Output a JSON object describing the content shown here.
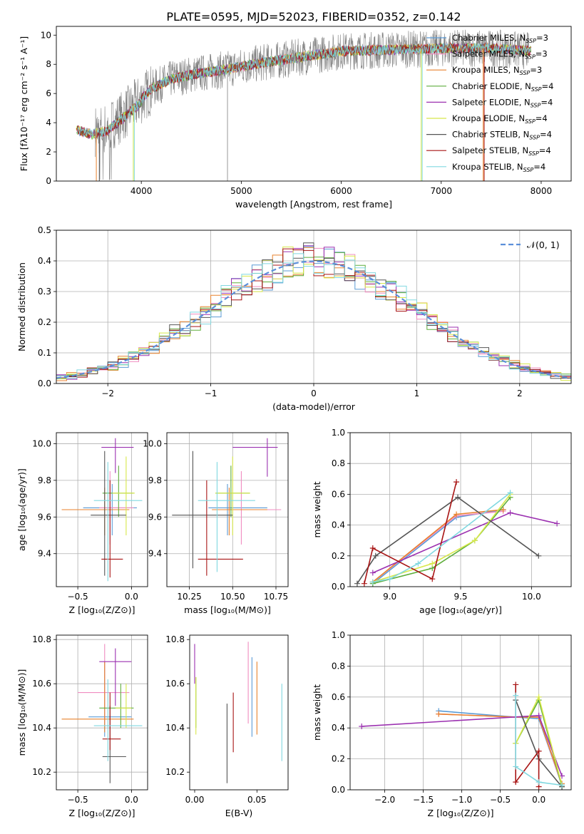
{
  "figure": {
    "title": "PLATE=0595, MJD=52023, FIBERID=0352, z=0.142"
  },
  "models": [
    {
      "name": "Chabrier MILES, N",
      "sub": "SSP",
      "tail": "=3",
      "color": "#5b9bd5"
    },
    {
      "name": "Salpeter MILES, N",
      "sub": "SSP",
      "tail": "=3",
      "color": "#f08cc0"
    },
    {
      "name": "Kroupa MILES, N",
      "sub": "SSP",
      "tail": "=3",
      "color": "#e8822d"
    },
    {
      "name": "Chabrier ELODIE, N",
      "sub": "SSP",
      "tail": "=4",
      "color": "#5fae3c"
    },
    {
      "name": "Salpeter ELODIE, N",
      "sub": "SSP",
      "tail": "=4",
      "color": "#9b30b0"
    },
    {
      "name": "Kroupa ELODIE, N",
      "sub": "SSP",
      "tail": "=4",
      "color": "#d8e84a"
    },
    {
      "name": "Chabrier STELIB, N",
      "sub": "SSP",
      "tail": "=4",
      "color": "#555555"
    },
    {
      "name": "Salpeter STELIB, N",
      "sub": "SSP",
      "tail": "=4",
      "color": "#a81414"
    },
    {
      "name": "Kroupa STELIB, N",
      "sub": "SSP",
      "tail": "=4",
      "color": "#80d8e0"
    }
  ],
  "chart_data": [
    {
      "id": "spectrum",
      "type": "line",
      "xlabel": "wavelength [Angstrom, rest frame]",
      "ylabel": "Flux [fλ10⁻¹⁷ erg cm⁻² s⁻¹ A⁻¹]",
      "xlim": [
        3150,
        8300
      ],
      "ylim": [
        0,
        10.6
      ],
      "xticks": [
        4000,
        5000,
        6000,
        7000,
        8000
      ],
      "yticks": [
        0,
        2,
        4,
        6,
        8,
        10
      ],
      "legend": "top-right",
      "continuum": {
        "x": [
          3350,
          3500,
          3650,
          3800,
          3950,
          4100,
          4300,
          4500,
          4800,
          5200,
          5600,
          6000,
          6500,
          7000,
          7500,
          7900
        ],
        "y": [
          3.7,
          3.4,
          3.6,
          4.4,
          5.3,
          6.3,
          7.0,
          7.3,
          7.6,
          8.1,
          8.5,
          8.9,
          9.0,
          9.1,
          9.1,
          8.9
        ]
      },
      "dropouts": [
        {
          "x": 3550,
          "model": 2
        },
        {
          "x": 3580,
          "model": 6
        },
        {
          "x": 3920,
          "model": 5
        },
        {
          "x": 3930,
          "model": 8
        },
        {
          "x": 6800,
          "model": 5
        },
        {
          "x": 6810,
          "model": 8
        },
        {
          "x": 7420,
          "model": 2
        },
        {
          "x": 7430,
          "model": 7
        }
      ],
      "grid": false
    },
    {
      "id": "residuals",
      "type": "histogram",
      "xlabel": "(data-model)/error",
      "ylabel": "Normed distribution",
      "xlim": [
        -2.5,
        2.5
      ],
      "ylim": [
        0,
        0.5
      ],
      "xticks": [
        -2,
        -1,
        0,
        1,
        2
      ],
      "yticks": [
        0.0,
        0.1,
        0.2,
        0.3,
        0.4,
        0.5
      ],
      "bin_width": 0.1,
      "reference": {
        "label": "𝒩(0, 1)",
        "mean": 0,
        "sigma": 1,
        "color": "#5b8fd9"
      },
      "legend": "top-right",
      "grid": true
    },
    {
      "id": "age_vs_Z",
      "type": "errorbar",
      "xlabel": "Z [log₁₀(Z/Z⊙)]",
      "ylabel": "age  [log₁₀(age/yr)]",
      "xlim": [
        -0.7,
        0.15
      ],
      "ylim": [
        9.22,
        10.06
      ],
      "xticks": [
        -0.5,
        0.0
      ],
      "yticks": [
        9.4,
        9.6,
        9.8,
        10.0
      ],
      "points": [
        {
          "model": 0,
          "x": -0.18,
          "xlo": -0.45,
          "xhi": 0.05,
          "y": 9.65,
          "ylo": 9.5,
          "yhi": 9.78
        },
        {
          "model": 1,
          "x": -0.2,
          "xlo": -0.3,
          "xhi": 0.02,
          "y": 9.65,
          "ylo": 9.45,
          "yhi": 9.85
        },
        {
          "model": 2,
          "x": -0.25,
          "xlo": -0.65,
          "xhi": -0.02,
          "y": 9.64,
          "ylo": 9.5,
          "yhi": 9.76
        },
        {
          "model": 3,
          "x": -0.12,
          "xlo": -0.27,
          "xhi": 0.02,
          "y": 9.73,
          "ylo": 9.6,
          "yhi": 9.88
        },
        {
          "model": 4,
          "x": -0.15,
          "xlo": -0.28,
          "xhi": 0.02,
          "y": 9.98,
          "ylo": 9.84,
          "yhi": 10.03
        },
        {
          "model": 5,
          "x": -0.05,
          "xlo": -0.18,
          "xhi": 0.03,
          "y": 9.73,
          "ylo": 9.5,
          "yhi": 9.93
        },
        {
          "model": 6,
          "x": -0.25,
          "xlo": -0.38,
          "xhi": -0.05,
          "y": 9.61,
          "ylo": 9.28,
          "yhi": 9.96
        },
        {
          "model": 7,
          "x": -0.2,
          "xlo": -0.28,
          "xhi": -0.08,
          "y": 9.37,
          "ylo": 9.27,
          "yhi": 9.8
        },
        {
          "model": 8,
          "x": -0.22,
          "xlo": -0.35,
          "xhi": 0.1,
          "y": 9.69,
          "ylo": 9.25,
          "yhi": 9.9
        }
      ],
      "grid": true
    },
    {
      "id": "age_vs_mass",
      "type": "errorbar",
      "xlabel": "mass [log₁₀(M/M⊙)]",
      "ylabel": "",
      "xlim": [
        10.12,
        10.82
      ],
      "ylim": [
        9.22,
        10.06
      ],
      "xticks": [
        10.25,
        10.5,
        10.75
      ],
      "yticks": [
        9.4,
        9.6,
        9.8,
        10.0
      ],
      "points": [
        {
          "model": 0,
          "x": 10.47,
          "xlo": 10.36,
          "xhi": 10.7,
          "y": 9.65,
          "ylo": 9.5,
          "yhi": 9.78
        },
        {
          "model": 1,
          "x": 10.55,
          "xlo": 10.42,
          "xhi": 10.78,
          "y": 9.64,
          "ylo": 9.45,
          "yhi": 9.85
        },
        {
          "model": 2,
          "x": 10.48,
          "xlo": 10.38,
          "xhi": 10.7,
          "y": 9.64,
          "ylo": 9.5,
          "yhi": 9.76
        },
        {
          "model": 3,
          "x": 10.49,
          "xlo": 10.4,
          "xhi": 10.6,
          "y": 9.73,
          "ylo": 9.6,
          "yhi": 9.88
        },
        {
          "model": 4,
          "x": 10.7,
          "xlo": 10.5,
          "xhi": 10.76,
          "y": 9.98,
          "ylo": 9.82,
          "yhi": 10.03
        },
        {
          "model": 5,
          "x": 10.5,
          "xlo": 10.4,
          "xhi": 10.6,
          "y": 9.73,
          "ylo": 9.5,
          "yhi": 9.93
        },
        {
          "model": 6,
          "x": 10.27,
          "xlo": 10.15,
          "xhi": 10.5,
          "y": 9.61,
          "ylo": 9.32,
          "yhi": 9.96
        },
        {
          "model": 7,
          "x": 10.35,
          "xlo": 10.3,
          "xhi": 10.56,
          "y": 9.37,
          "ylo": 9.28,
          "yhi": 9.8
        },
        {
          "model": 8,
          "x": 10.41,
          "xlo": 10.3,
          "xhi": 10.63,
          "y": 9.69,
          "ylo": 9.3,
          "yhi": 9.9
        }
      ],
      "grid": true
    },
    {
      "id": "mass_weight_vs_age",
      "type": "line",
      "xlabel": "age  [log₁₀(age/yr)]",
      "ylabel": "mass weight",
      "xlim": [
        8.72,
        10.28
      ],
      "ylim": [
        0,
        1.0
      ],
      "xticks": [
        9.0,
        9.5,
        10.0
      ],
      "yticks": [
        0.0,
        0.2,
        0.4,
        0.6,
        0.8,
        1.0
      ],
      "series": [
        {
          "model": 0,
          "x": [
            8.88,
            9.47,
            9.8
          ],
          "y": [
            0.02,
            0.45,
            0.5
          ]
        },
        {
          "model": 1,
          "x": [
            8.88,
            9.47,
            9.8
          ],
          "y": [
            0.03,
            0.46,
            0.49
          ]
        },
        {
          "model": 2,
          "x": [
            8.88,
            9.47,
            9.8
          ],
          "y": [
            0.03,
            0.47,
            0.5
          ]
        },
        {
          "model": 3,
          "x": [
            8.88,
            9.3,
            9.6,
            9.85
          ],
          "y": [
            0.02,
            0.12,
            0.3,
            0.58
          ]
        },
        {
          "model": 4,
          "x": [
            8.88,
            9.85,
            10.18
          ],
          "y": [
            0.09,
            0.48,
            0.41
          ]
        },
        {
          "model": 5,
          "x": [
            8.88,
            9.3,
            9.6,
            9.85
          ],
          "y": [
            0.03,
            0.15,
            0.3,
            0.6
          ]
        },
        {
          "model": 6,
          "x": [
            8.77,
            8.9,
            9.48,
            10.05
          ],
          "y": [
            0.02,
            0.2,
            0.58,
            0.2
          ]
        },
        {
          "model": 7,
          "x": [
            8.82,
            8.88,
            9.3,
            9.47
          ],
          "y": [
            0.02,
            0.25,
            0.05,
            0.68
          ]
        },
        {
          "model": 8,
          "x": [
            8.88,
            9.0,
            9.2,
            9.85
          ],
          "y": [
            0.03,
            0.05,
            0.15,
            0.61
          ]
        }
      ],
      "grid": true
    },
    {
      "id": "mass_vs_Z",
      "type": "errorbar",
      "xlabel": "Z [log₁₀(Z/Z⊙)]",
      "ylabel": "mass [log₁₀(M/M⊙)]",
      "xlim": [
        -0.7,
        0.15
      ],
      "ylim": [
        10.12,
        10.82
      ],
      "xticks": [
        -0.5,
        0.0
      ],
      "yticks": [
        10.2,
        10.4,
        10.6,
        10.8
      ],
      "points": [
        {
          "model": 0,
          "x": -0.25,
          "xlo": -0.4,
          "xhi": 0.0,
          "y": 10.45,
          "ylo": 10.36,
          "yhi": 10.7
        },
        {
          "model": 1,
          "x": -0.25,
          "xlo": -0.5,
          "xhi": -0.02,
          "y": 10.56,
          "ylo": 10.42,
          "yhi": 10.78
        },
        {
          "model": 2,
          "x": -0.25,
          "xlo": -0.65,
          "xhi": 0.02,
          "y": 10.44,
          "ylo": 10.38,
          "yhi": 10.7
        },
        {
          "model": 3,
          "x": -0.1,
          "xlo": -0.3,
          "xhi": 0.02,
          "y": 10.49,
          "ylo": 10.4,
          "yhi": 10.6
        },
        {
          "model": 4,
          "x": -0.15,
          "xlo": -0.3,
          "xhi": 0.0,
          "y": 10.7,
          "ylo": 10.5,
          "yhi": 10.76
        },
        {
          "model": 5,
          "x": -0.05,
          "xlo": -0.15,
          "xhi": 0.0,
          "y": 10.49,
          "ylo": 10.4,
          "yhi": 10.6
        },
        {
          "model": 6,
          "x": -0.2,
          "xlo": -0.27,
          "xhi": -0.05,
          "y": 10.27,
          "ylo": 10.15,
          "yhi": 10.5
        },
        {
          "model": 7,
          "x": -0.2,
          "xlo": -0.27,
          "xhi": -0.1,
          "y": 10.35,
          "ylo": 10.3,
          "yhi": 10.56
        },
        {
          "model": 8,
          "x": -0.22,
          "xlo": -0.35,
          "xhi": 0.1,
          "y": 10.41,
          "ylo": 10.25,
          "yhi": 10.62
        }
      ],
      "grid": true
    },
    {
      "id": "mass_vs_ebv",
      "type": "errorbar",
      "xlabel": "E(B-V)",
      "ylabel": "",
      "xlim": [
        -0.004,
        0.075
      ],
      "ylim": [
        10.12,
        10.82
      ],
      "xticks": [
        0.0,
        0.05
      ],
      "yticks": [
        10.2,
        10.4,
        10.6,
        10.8
      ],
      "points": [
        {
          "model": 0,
          "x": 0.046,
          "y": 10.45,
          "ylo": 10.36,
          "yhi": 10.72
        },
        {
          "model": 1,
          "x": 0.043,
          "y": 10.56,
          "ylo": 10.42,
          "yhi": 10.79
        },
        {
          "model": 2,
          "x": 0.05,
          "y": 10.44,
          "ylo": 10.37,
          "yhi": 10.7
        },
        {
          "model": 3,
          "x": 0.001,
          "y": 10.49,
          "ylo": 10.4,
          "yhi": 10.63
        },
        {
          "model": 4,
          "x": 0.0,
          "y": 10.7,
          "ylo": 10.6,
          "yhi": 10.78
        },
        {
          "model": 5,
          "x": 0.001,
          "y": 10.49,
          "ylo": 10.37,
          "yhi": 10.63
        },
        {
          "model": 6,
          "x": 0.026,
          "y": 10.27,
          "ylo": 10.15,
          "yhi": 10.51
        },
        {
          "model": 7,
          "x": 0.031,
          "y": 10.35,
          "ylo": 10.29,
          "yhi": 10.56
        },
        {
          "model": 8,
          "x": 0.07,
          "y": 10.41,
          "ylo": 10.25,
          "yhi": 10.6
        }
      ],
      "grid": false
    },
    {
      "id": "mass_weight_vs_Z",
      "type": "line",
      "xlabel": "Z [log₁₀(Z/Z⊙)]",
      "ylabel": "mass weight",
      "xlim": [
        -2.45,
        0.42
      ],
      "ylim": [
        0,
        1.0
      ],
      "xticks": [
        -2.0,
        -1.5,
        -1.0,
        -0.5,
        0.0
      ],
      "yticks": [
        0.0,
        0.2,
        0.4,
        0.6,
        0.8,
        1.0
      ],
      "series": [
        {
          "model": 0,
          "x": [
            -1.3,
            -0.3,
            0.0,
            0.3
          ],
          "y": [
            0.51,
            0.47,
            0.46,
            0.03
          ]
        },
        {
          "model": 1,
          "x": [
            -1.3,
            -0.3,
            0.0,
            0.3
          ],
          "y": [
            0.49,
            0.47,
            0.47,
            0.03
          ]
        },
        {
          "model": 2,
          "x": [
            -1.3,
            -0.3,
            0.0,
            0.3
          ],
          "y": [
            0.49,
            0.47,
            0.47,
            0.04
          ]
        },
        {
          "model": 3,
          "x": [
            -0.3,
            0.0,
            0.3
          ],
          "y": [
            0.3,
            0.58,
            0.02
          ]
        },
        {
          "model": 4,
          "x": [
            -2.3,
            0.0,
            0.3
          ],
          "y": [
            0.41,
            0.48,
            0.09
          ]
        },
        {
          "model": 5,
          "x": [
            -0.3,
            0.0,
            0.3
          ],
          "y": [
            0.3,
            0.6,
            0.03
          ]
        },
        {
          "model": 6,
          "x": [
            -0.3,
            0.0,
            0.3
          ],
          "y": [
            0.58,
            0.2,
            0.02
          ]
        },
        {
          "model": 7,
          "x": [
            -0.3,
            -0.3,
            0.0,
            0.0
          ],
          "y": [
            0.68,
            0.05,
            0.25,
            0.02
          ]
        },
        {
          "model": 8,
          "x": [
            -0.3,
            -0.3,
            0.0,
            0.3
          ],
          "y": [
            0.61,
            0.15,
            0.05,
            0.03
          ]
        }
      ],
      "grid": true
    }
  ]
}
